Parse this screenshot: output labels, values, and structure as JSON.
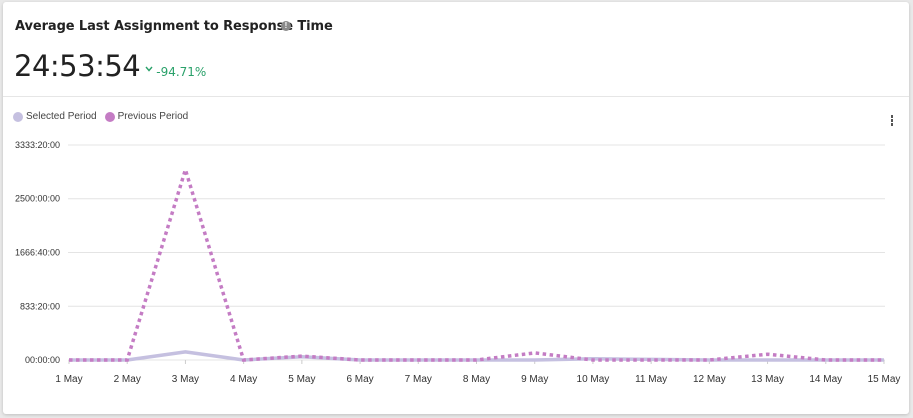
{
  "widget": {
    "title": "Average Last Assignment to Response Time",
    "info_icon": "info-icon",
    "kpi_value": "24:53:54",
    "change_direction_icon": "chevron-down-icon",
    "change_percent": "-94.71%",
    "change_color": "#2aa16a",
    "menu_icon": "kebab-menu-icon"
  },
  "legend": [
    {
      "label": "Selected Period",
      "color": "#c5c0e0"
    },
    {
      "label": "Previous Period",
      "color": "#c47cc4"
    }
  ],
  "chart_data": {
    "type": "line",
    "title": "Average Last Assignment to Response Time",
    "xlabel": "",
    "ylabel": "",
    "categories": [
      "1 May",
      "2 May",
      "3 May",
      "4 May",
      "5 May",
      "6 May",
      "7 May",
      "8 May",
      "9 May",
      "10 May",
      "11 May",
      "12 May",
      "13 May",
      "14 May",
      "15 May"
    ],
    "y_ticks": [
      "00:00:00",
      "833:20:00",
      "1666:40:00",
      "2500:00:00",
      "3333:20:00"
    ],
    "y_tick_hours": [
      0,
      833.33,
      1666.67,
      2500,
      3333.33
    ],
    "ylim_hours": [
      0,
      3333.33
    ],
    "grid": true,
    "legend_position": "top-left",
    "series": [
      {
        "name": "Selected Period",
        "style": "solid",
        "color": "#c5c0e0",
        "values_hours": [
          0,
          0,
          125,
          0,
          50,
          0,
          0,
          0,
          0,
          20,
          10,
          0,
          0,
          0,
          0
        ]
      },
      {
        "name": "Previous Period",
        "style": "dotted",
        "color": "#c47cc4",
        "values_hours": [
          0,
          0,
          2950,
          0,
          60,
          0,
          0,
          0,
          110,
          0,
          0,
          0,
          90,
          0,
          0
        ]
      }
    ]
  }
}
